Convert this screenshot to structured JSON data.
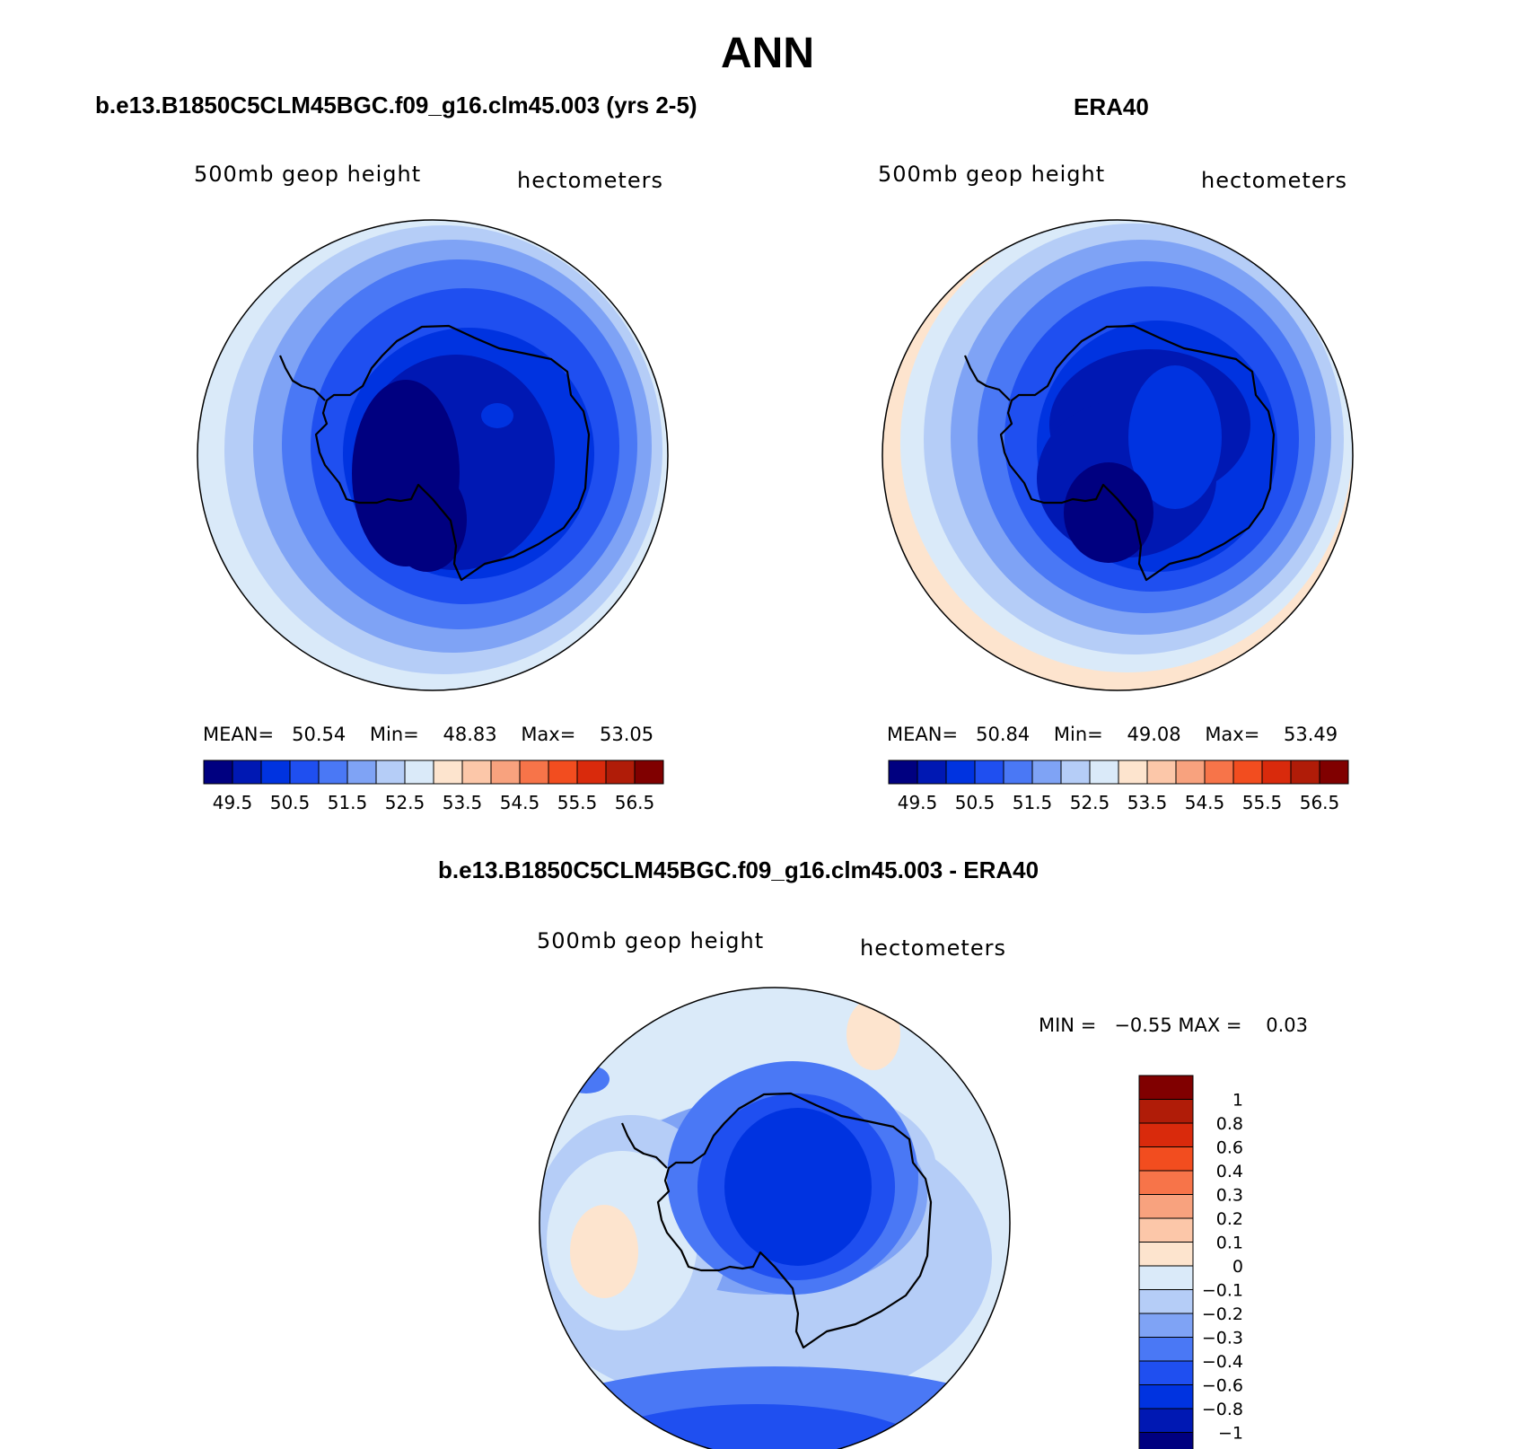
{
  "title": "ANN",
  "panels": [
    {
      "title": "b.e13.B1850C5CLM45BGC.f09_g16.clm45.003 (yrs 2-5)",
      "left_label": "500mb geop height",
      "right_label": "hectometers",
      "stats": {
        "mean_label": "MEAN=",
        "mean": "50.54",
        "min_label": "Min=",
        "min": "48.83",
        "max_label": "Max=",
        "max": "53.05"
      }
    },
    {
      "title": "ERA40",
      "left_label": "500mb geop height",
      "right_label": "hectometers",
      "stats": {
        "mean_label": "MEAN=",
        "mean": "50.84",
        "min_label": "Min=",
        "min": "49.08",
        "max_label": "Max=",
        "max": "53.49"
      }
    }
  ],
  "diff_panel": {
    "title": "b.e13.B1850C5CLM45BGC.f09_g16.clm45.003 - ERA40",
    "left_label": "500mb geop height",
    "right_label": "hectometers",
    "min_label": "MIN =",
    "min": "−0.55",
    "max_label": "MAX =",
    "max": "0.03"
  },
  "chart_data": [
    {
      "type": "heatmap",
      "projection": "south-polar stereographic",
      "title": "b.e13.B1850C5CLM45BGC.f09_g16.clm45.003 (yrs 2-5)",
      "variable": "500mb geop height",
      "units": "hectometers",
      "mean": 50.54,
      "min": 48.83,
      "max": 53.05,
      "contour_levels": [
        49.5,
        50,
        50.5,
        51,
        51.5,
        52,
        52.5,
        53,
        53.5,
        54,
        54.5,
        55,
        55.5,
        56,
        56.5
      ],
      "colorbar_tick_labels": [
        "49.5",
        "50.5",
        "51.5",
        "52.5",
        "53.5",
        "54.5",
        "55.5",
        "56.5"
      ],
      "colors": [
        "#000080",
        "#0018b3",
        "#0033e0",
        "#1f4ff0",
        "#4a78f5",
        "#7fa3f5",
        "#b5cdf7",
        "#daeaf9",
        "#fde4ce",
        "#fcc7a9",
        "#f8a27e",
        "#f77449",
        "#f24d1f",
        "#d92a0c",
        "#b01c08",
        "#800000"
      ]
    },
    {
      "type": "heatmap",
      "projection": "south-polar stereographic",
      "title": "ERA40",
      "variable": "500mb geop height",
      "units": "hectometers",
      "mean": 50.84,
      "min": 49.08,
      "max": 53.49,
      "contour_levels": [
        49.5,
        50,
        50.5,
        51,
        51.5,
        52,
        52.5,
        53,
        53.5,
        54,
        54.5,
        55,
        55.5,
        56,
        56.5
      ],
      "colorbar_tick_labels": [
        "49.5",
        "50.5",
        "51.5",
        "52.5",
        "53.5",
        "54.5",
        "55.5",
        "56.5"
      ],
      "colors": [
        "#000080",
        "#0018b3",
        "#0033e0",
        "#1f4ff0",
        "#4a78f5",
        "#7fa3f5",
        "#b5cdf7",
        "#daeaf9",
        "#fde4ce",
        "#fcc7a9",
        "#f8a27e",
        "#f77449",
        "#f24d1f",
        "#d92a0c",
        "#b01c08",
        "#800000"
      ]
    },
    {
      "type": "heatmap",
      "projection": "south-polar stereographic",
      "title": "b.e13.B1850C5CLM45BGC.f09_g16.clm45.003 - ERA40",
      "variable": "500mb geop height",
      "units": "hectometers",
      "min": -0.55,
      "max": 0.03,
      "contour_levels": [
        1,
        0.8,
        0.6,
        0.4,
        0.3,
        0.2,
        0.1,
        0,
        -0.1,
        -0.2,
        -0.3,
        -0.4,
        -0.6,
        -0.8,
        -1
      ],
      "colorbar_tick_labels": [
        "1",
        "0.8",
        "0.6",
        "0.4",
        "0.3",
        "0.2",
        "0.1",
        "0",
        "−0.1",
        "−0.2",
        "−0.3",
        "−0.4",
        "−0.6",
        "−0.8",
        "−1"
      ],
      "colors": [
        "#800000",
        "#b01c08",
        "#d92a0c",
        "#f24d1f",
        "#f77449",
        "#f8a27e",
        "#fcc7a9",
        "#fde4ce",
        "#daeaf9",
        "#b5cdf7",
        "#7fa3f5",
        "#4a78f5",
        "#1f4ff0",
        "#0033e0",
        "#0018b3",
        "#000080"
      ]
    }
  ]
}
